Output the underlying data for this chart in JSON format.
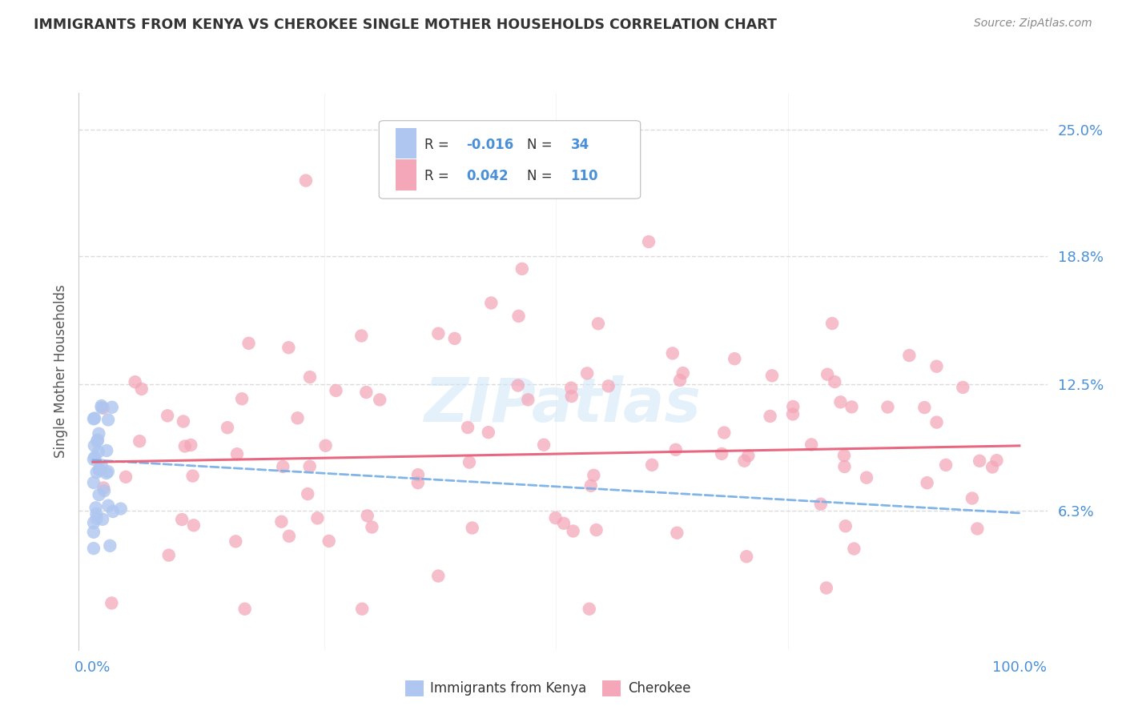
{
  "title": "IMMIGRANTS FROM KENYA VS CHEROKEE SINGLE MOTHER HOUSEHOLDS CORRELATION CHART",
  "source": "Source: ZipAtlas.com",
  "ylabel": "Single Mother Households",
  "ytick_labels": [
    "6.3%",
    "12.5%",
    "18.8%",
    "25.0%"
  ],
  "ytick_values": [
    0.063,
    0.125,
    0.188,
    0.25
  ],
  "xtick_labels": [
    "0.0%",
    "100.0%"
  ],
  "xtick_values": [
    0.0,
    1.0
  ],
  "legend1_color": "#aec6f0",
  "legend2_color": "#f4a7b9",
  "scatter1_color": "#aec6f0",
  "scatter2_color": "#f4a7b9",
  "trend1_color": "#7ab0e8",
  "trend2_color": "#e8607a",
  "watermark": "ZIPatlas",
  "bottom_legend1": "Immigrants from Kenya",
  "bottom_legend2": "Cherokee",
  "background_color": "#ffffff",
  "grid_color": "#d8d8d8",
  "title_color": "#333333",
  "source_color": "#888888",
  "axis_label_color": "#555555",
  "tick_color": "#4a90d9",
  "r1": "-0.016",
  "n1": "34",
  "r2": "0.042",
  "n2": "110"
}
